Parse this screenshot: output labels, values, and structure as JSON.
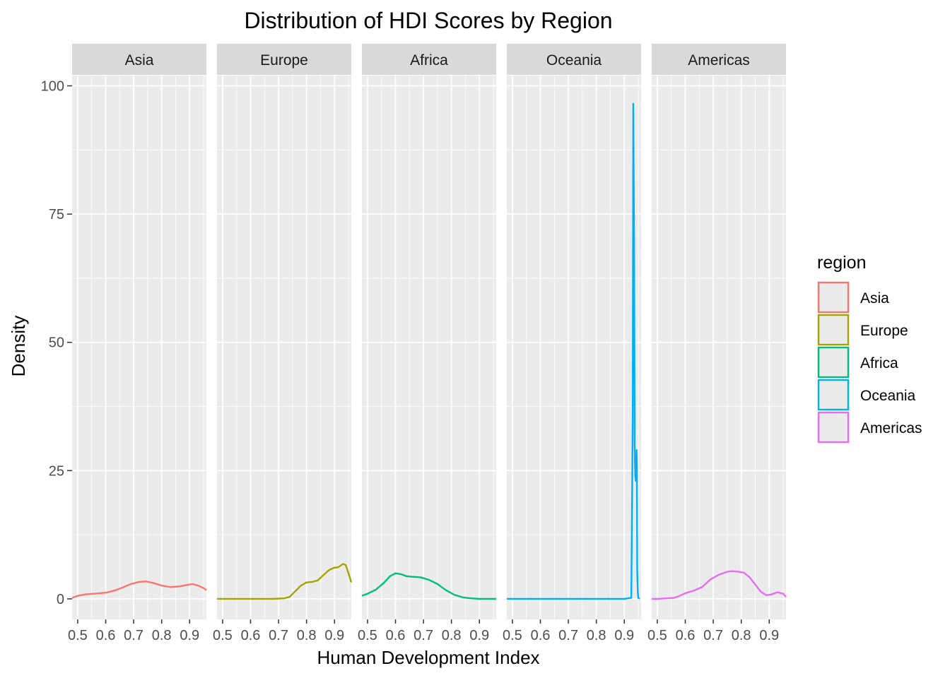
{
  "chart_data": {
    "type": "line",
    "subtype": "faceted density",
    "title": "Distribution of HDI Scores by Region",
    "xlabel": "Human Development Index",
    "ylabel": "Density",
    "xlim": [
      0.48,
      0.96
    ],
    "ylim": [
      -4,
      102
    ],
    "x_ticks": [
      0.5,
      0.6,
      0.7,
      0.8,
      0.9
    ],
    "x_tick_labels": [
      "0.5",
      "0.6",
      "0.7",
      "0.8",
      "0.9"
    ],
    "y_ticks": [
      0,
      25,
      50,
      75,
      100
    ],
    "y_tick_labels": [
      "0",
      "25",
      "50",
      "75",
      "100"
    ],
    "grid": true,
    "legend": {
      "title": "region",
      "position": "right"
    },
    "series": [
      {
        "name": "Asia",
        "color": "#F8766D",
        "x": [
          0.48,
          0.5,
          0.53,
          0.56,
          0.6,
          0.63,
          0.66,
          0.69,
          0.72,
          0.745,
          0.77,
          0.8,
          0.83,
          0.86,
          0.89,
          0.91,
          0.93,
          0.95,
          0.96
        ],
        "y": [
          0.2,
          0.6,
          0.9,
          1.0,
          1.2,
          1.6,
          2.2,
          2.9,
          3.3,
          3.4,
          3.1,
          2.6,
          2.3,
          2.4,
          2.7,
          2.9,
          2.6,
          2.1,
          1.7
        ]
      },
      {
        "name": "Europe",
        "color": "#A3A500",
        "x": [
          0.48,
          0.55,
          0.62,
          0.68,
          0.72,
          0.74,
          0.76,
          0.78,
          0.8,
          0.82,
          0.84,
          0.86,
          0.88,
          0.9,
          0.91,
          0.92,
          0.93,
          0.94,
          0.95,
          0.96
        ],
        "y": [
          0.0,
          0.0,
          0.0,
          0.0,
          0.1,
          0.4,
          1.5,
          2.6,
          3.2,
          3.3,
          3.6,
          4.6,
          5.6,
          6.1,
          6.1,
          6.4,
          6.8,
          6.6,
          5.0,
          3.2
        ]
      },
      {
        "name": "Africa",
        "color": "#00BF7D",
        "x": [
          0.48,
          0.5,
          0.53,
          0.56,
          0.58,
          0.6,
          0.62,
          0.64,
          0.66,
          0.69,
          0.72,
          0.75,
          0.78,
          0.81,
          0.84,
          0.87,
          0.9,
          0.93,
          0.96
        ],
        "y": [
          0.6,
          1.0,
          1.8,
          3.2,
          4.4,
          5.0,
          4.8,
          4.4,
          4.3,
          4.2,
          3.7,
          2.9,
          1.7,
          0.8,
          0.3,
          0.1,
          0.0,
          0.0,
          0.0
        ]
      },
      {
        "name": "Oceania",
        "color": "#00B0F6",
        "x": [
          0.48,
          0.6,
          0.75,
          0.9,
          0.925,
          0.93,
          0.932,
          0.935,
          0.937,
          0.939,
          0.941,
          0.943,
          0.944,
          0.945,
          0.946,
          0.948,
          0.95,
          0.955
        ],
        "y": [
          0.0,
          0.0,
          0.0,
          0.0,
          0.2,
          35,
          96.5,
          70,
          30,
          24,
          23,
          24,
          29,
          26,
          6,
          1.5,
          0.2,
          0.0
        ]
      },
      {
        "name": "Americas",
        "color": "#E76BF3",
        "x": [
          0.48,
          0.5,
          0.53,
          0.56,
          0.58,
          0.6,
          0.63,
          0.66,
          0.69,
          0.72,
          0.75,
          0.77,
          0.79,
          0.81,
          0.83,
          0.85,
          0.87,
          0.89,
          0.91,
          0.93,
          0.95,
          0.96
        ],
        "y": [
          0.0,
          0.0,
          0.1,
          0.2,
          0.6,
          1.1,
          1.6,
          2.3,
          3.8,
          4.7,
          5.3,
          5.4,
          5.3,
          5.1,
          4.2,
          2.8,
          1.4,
          0.7,
          0.9,
          1.3,
          1.0,
          0.4
        ]
      }
    ]
  }
}
